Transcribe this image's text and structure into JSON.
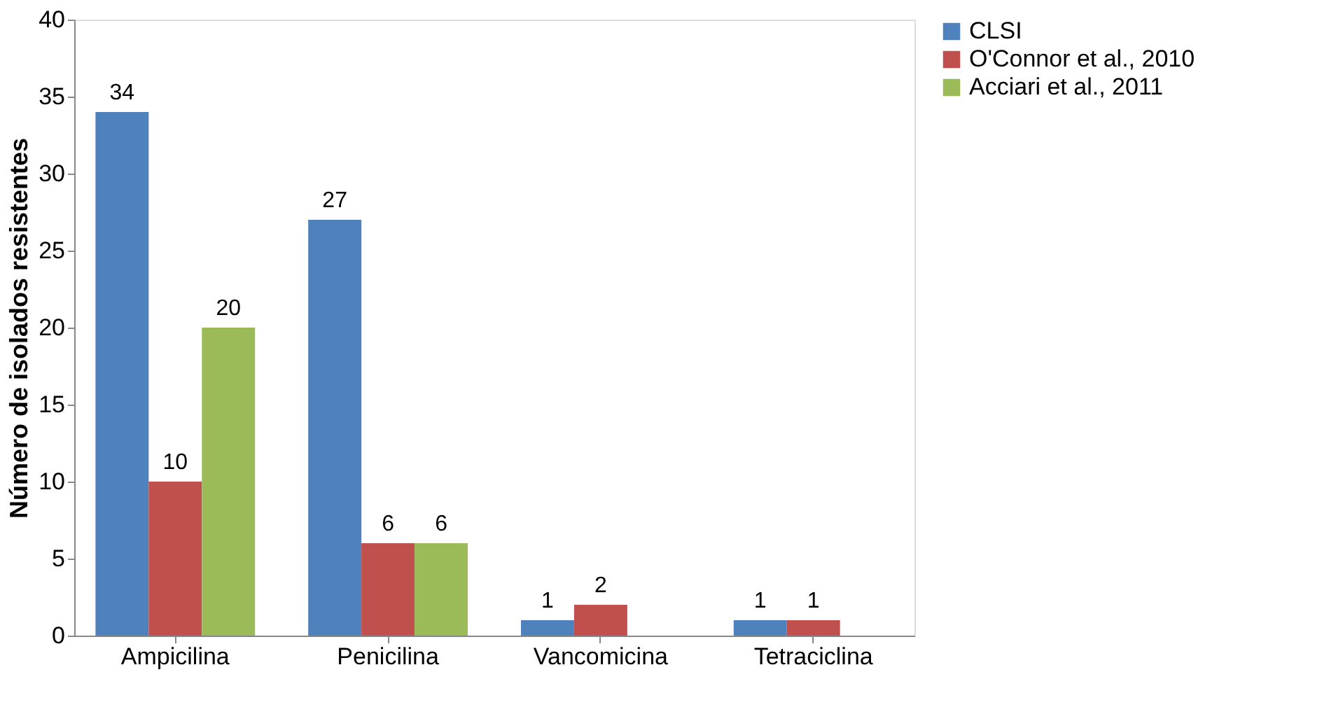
{
  "chart_data": {
    "type": "bar",
    "ylabel": "Número de isolados resistentes",
    "categories": [
      "Ampicilina",
      "Penicilina",
      "Vancomicina",
      "Tetraciclina"
    ],
    "series": [
      {
        "name": "CLSI",
        "color": "#4f81bd",
        "values": [
          34,
          27,
          1,
          1
        ]
      },
      {
        "name": "O'Connor et al., 2010",
        "color": "#c0504d",
        "values": [
          10,
          6,
          2,
          1
        ]
      },
      {
        "name": "Acciari et al., 2011",
        "color": "#9bbb59",
        "values": [
          20,
          6,
          null,
          null
        ]
      }
    ],
    "ylim": [
      0,
      40
    ],
    "yticks": [
      0,
      5,
      10,
      15,
      20,
      25,
      30,
      35,
      40
    ],
    "grid": false,
    "legend": "right",
    "data_labels": true
  }
}
